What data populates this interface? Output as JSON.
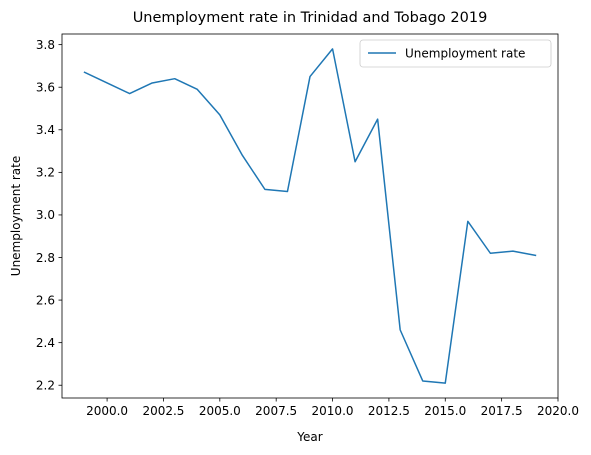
{
  "chart_data": {
    "type": "line",
    "title": "Unemployment rate in Trinidad and Tobago 2019",
    "xlabel": "Year",
    "ylabel": "Unemployment rate",
    "xlim": [
      1998.0,
      2020.0
    ],
    "ylim": [
      2.14,
      3.85
    ],
    "xticks": [
      2000.0,
      2002.5,
      2005.0,
      2007.5,
      2010.0,
      2012.5,
      2015.0,
      2017.5,
      2020.0
    ],
    "xtick_labels": [
      "2000.0",
      "2002.5",
      "2005.0",
      "2007.5",
      "2010.0",
      "2012.5",
      "2015.0",
      "2017.5",
      "2020.0"
    ],
    "yticks": [
      2.2,
      2.4,
      2.6,
      2.8,
      3.0,
      3.2,
      3.4,
      3.6,
      3.8
    ],
    "ytick_labels": [
      "2.2",
      "2.4",
      "2.6",
      "2.8",
      "3.0",
      "3.2",
      "3.4",
      "3.6",
      "3.8"
    ],
    "grid": false,
    "legend_position": "top-right",
    "line_color": "#1f77b4",
    "series": [
      {
        "name": "Unemployment rate",
        "x": [
          1999,
          2000,
          2001,
          2002,
          2003,
          2004,
          2005,
          2006,
          2007,
          2008,
          2009,
          2010,
          2011,
          2012,
          2013,
          2014,
          2015,
          2016,
          2017,
          2018,
          2019
        ],
        "y": [
          3.67,
          3.62,
          3.57,
          3.62,
          3.64,
          3.59,
          3.47,
          3.28,
          3.12,
          3.11,
          3.65,
          3.78,
          3.25,
          3.45,
          2.46,
          2.22,
          2.21,
          2.97,
          2.82,
          2.83,
          2.81
        ]
      }
    ]
  }
}
